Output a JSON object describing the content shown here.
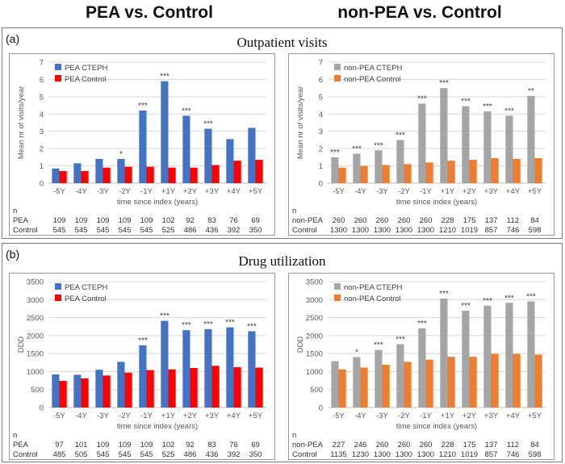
{
  "headers": {
    "left": "PEA vs. Control",
    "right": "non-PEA vs. Control"
  },
  "sections": [
    {
      "label": "(a)",
      "title": "Outpatient visits"
    },
    {
      "label": "(b)",
      "title": "Drug utilization"
    }
  ],
  "colors": {
    "blue": "#4472C4",
    "red": "#FF0000",
    "gray": "#A5A5A5",
    "orange": "#ED7D31"
  },
  "chart_data": [
    {
      "type": "bar",
      "panel": "outpatient-pea",
      "categories": [
        "-5Y",
        "-4Y",
        "-3Y",
        "-2Y",
        "-1Y",
        "+1Y",
        "+2Y",
        "+3Y",
        "+4Y",
        "+5Y"
      ],
      "xlabel": "time since index (years)",
      "ylabel": "Mean nr of visits/year",
      "ylim": [
        0,
        7
      ],
      "yticks": [
        "0",
        "1",
        "2",
        "3",
        "4",
        "5",
        "6",
        "7"
      ],
      "grid": true,
      "legend_position": "top-left",
      "series": [
        {
          "name": "PEA CTEPH",
          "color": "#4472C4",
          "values": [
            0.85,
            1.15,
            1.4,
            1.4,
            4.2,
            5.9,
            3.9,
            3.15,
            2.55,
            3.2
          ]
        },
        {
          "name": "PEA Control",
          "color": "#FF0000",
          "values": [
            0.7,
            0.7,
            0.9,
            0.95,
            0.95,
            0.9,
            0.9,
            1.05,
            1.3,
            1.35
          ]
        }
      ],
      "significance": [
        "",
        "",
        "",
        "*",
        "***",
        "***",
        "***",
        "***",
        "",
        ""
      ],
      "n_table": {
        "header": "n",
        "rows": [
          {
            "label": "PEA",
            "values": [
              "109",
              "109",
              "109",
              "109",
              "109",
              "102",
              "92",
              "83",
              "76",
              "69"
            ]
          },
          {
            "label": "Control",
            "values": [
              "545",
              "545",
              "545",
              "545",
              "545",
              "525",
              "486",
              "436",
              "392",
              "350"
            ]
          }
        ]
      }
    },
    {
      "type": "bar",
      "panel": "outpatient-nonpea",
      "categories": [
        "-5Y",
        "-4Y",
        "-3Y",
        "-2Y",
        "-1Y",
        "+1Y",
        "+2Y",
        "+3Y",
        "+4Y",
        "+5Y"
      ],
      "xlabel": "time since index (years)",
      "ylabel": "Mean nr of visits/year",
      "ylim": [
        0,
        7
      ],
      "yticks": [
        "0",
        "1",
        "2",
        "3",
        "4",
        "5",
        "6",
        "7"
      ],
      "grid": true,
      "legend_position": "top-left",
      "series": [
        {
          "name": "non-PEA CTEPH",
          "color": "#A5A5A5",
          "values": [
            1.5,
            1.7,
            1.9,
            2.5,
            4.6,
            5.5,
            4.45,
            4.15,
            3.9,
            5.05
          ]
        },
        {
          "name": "non-PEA Control",
          "color": "#ED7D31",
          "values": [
            0.9,
            1.0,
            1.05,
            1.1,
            1.2,
            1.3,
            1.35,
            1.45,
            1.4,
            1.45
          ]
        }
      ],
      "significance": [
        "***",
        "***",
        "***",
        "***",
        "***",
        "***",
        "***",
        "***",
        "***",
        "**"
      ],
      "n_table": {
        "header": "n",
        "rows": [
          {
            "label": "non-PEA",
            "values": [
              "260",
              "260",
              "260",
              "260",
              "260",
              "228",
              "175",
              "137",
              "112",
              "84"
            ]
          },
          {
            "label": "Control",
            "values": [
              "1300",
              "1300",
              "1300",
              "1300",
              "1300",
              "1210",
              "1019",
              "857",
              "746",
              "598"
            ]
          }
        ]
      }
    },
    {
      "type": "bar",
      "panel": "drug-pea",
      "categories": [
        "-5Y",
        "-4Y",
        "-3Y",
        "-2Y",
        "-1Y",
        "+1Y",
        "+2Y",
        "+3Y",
        "+4Y",
        "+5Y"
      ],
      "xlabel": "time since index (years)",
      "ylabel": "DDD",
      "ylim": [
        0,
        3500
      ],
      "yticks": [
        "0",
        "500",
        "1000",
        "1500",
        "2000",
        "2500",
        "3000",
        "3500"
      ],
      "grid": true,
      "legend_position": "top-left",
      "series": [
        {
          "name": "PEA CTEPH",
          "color": "#4472C4",
          "values": [
            920,
            910,
            1050,
            1270,
            1730,
            2410,
            2150,
            2180,
            2230,
            2120
          ]
        },
        {
          "name": "PEA Control",
          "color": "#FF0000",
          "values": [
            740,
            810,
            890,
            970,
            1040,
            1060,
            1100,
            1160,
            1120,
            1110
          ]
        }
      ],
      "significance": [
        "",
        "",
        "",
        "",
        "***",
        "***",
        "***",
        "***",
        "***",
        "***"
      ],
      "n_table": {
        "header": "n",
        "rows": [
          {
            "label": "PEA",
            "values": [
              "97",
              "101",
              "109",
              "109",
              "109",
              "102",
              "92",
              "83",
              "76",
              "69"
            ]
          },
          {
            "label": "Control",
            "values": [
              "485",
              "505",
              "545",
              "545",
              "545",
              "525",
              "486",
              "436",
              "392",
              "350"
            ]
          }
        ]
      }
    },
    {
      "type": "bar",
      "panel": "drug-nonpea",
      "categories": [
        "-5Y",
        "-4Y",
        "-3Y",
        "-2Y",
        "-1Y",
        "+1Y",
        "+2Y",
        "+3Y",
        "+4Y",
        "+5Y"
      ],
      "xlabel": "time since index (years)",
      "ylabel": "DDD",
      "ylim": [
        0,
        3500
      ],
      "yticks": [
        "0",
        "500",
        "1000",
        "1500",
        "2000",
        "2500",
        "3000",
        "3500"
      ],
      "grid": true,
      "legend_position": "top-left",
      "series": [
        {
          "name": "non-PEA CTEPH",
          "color": "#A5A5A5",
          "values": [
            1290,
            1400,
            1600,
            1760,
            2200,
            3030,
            2690,
            2830,
            2910,
            2950
          ]
        },
        {
          "name": "non-PEA Control",
          "color": "#ED7D31",
          "values": [
            1060,
            1110,
            1190,
            1270,
            1330,
            1410,
            1410,
            1490,
            1490,
            1470
          ]
        }
      ],
      "significance": [
        "",
        "*",
        "***",
        "***",
        "***",
        "***",
        "***",
        "***",
        "***",
        "***"
      ],
      "n_table": {
        "header": "n",
        "rows": [
          {
            "label": "non-PEA",
            "values": [
              "227",
              "246",
              "260",
              "260",
              "260",
              "228",
              "175",
              "137",
              "112",
              "84"
            ]
          },
          {
            "label": "Control",
            "values": [
              "1135",
              "1230",
              "1300",
              "1300",
              "1300",
              "1210",
              "1019",
              "857",
              "746",
              "598"
            ]
          }
        ]
      }
    }
  ]
}
